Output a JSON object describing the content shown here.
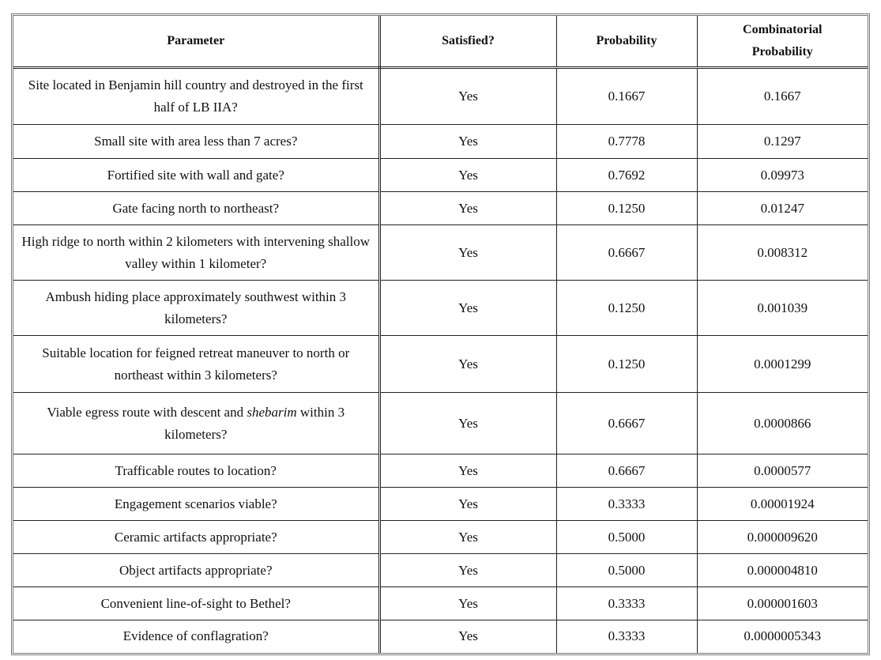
{
  "table": {
    "header": [
      "Parameter",
      "Satisfied?",
      "Probability",
      "Combinatorial Probability"
    ],
    "rows": [
      [
        "Site located in Benjamin hill country and destroyed in the first half of LB IIA?",
        "Yes",
        "0.1667",
        "0.1667"
      ],
      [
        "Small site with area less than 7 acres?",
        "Yes",
        "0.7778",
        "0.1297"
      ],
      [
        "Fortified site with wall and gate?",
        "Yes",
        "0.7692",
        "0.09973"
      ],
      [
        "Gate facing north to northeast?",
        "Yes",
        "0.1250",
        "0.01247"
      ],
      [
        "High ridge to north within 2 kilometers with intervening shallow valley within 1 kilometer?",
        "Yes",
        "0.6667",
        "0.008312"
      ],
      [
        "Ambush hiding place approximately southwest within 3 kilometers?",
        "Yes",
        "0.1250",
        "0.001039"
      ],
      [
        "Suitable location for feigned retreat maneuver to north or northeast within 3 kilometers?",
        "Yes",
        "0.1250",
        "0.0001299"
      ],
      [
        [
          "Viable egress route with descent and ",
          "shebarim",
          " within 3 kilometers?"
        ],
        "Yes",
        "0.6667",
        "0.0000866"
      ],
      [
        "Trafficable routes to location?",
        "Yes",
        "0.6667",
        "0.0000577"
      ],
      [
        "Engagement scenarios viable?",
        "Yes",
        "0.3333",
        "0.00001924"
      ],
      [
        "Ceramic artifacts appropriate?",
        "Yes",
        "0.5000",
        "0.000009620"
      ],
      [
        "Object artifacts appropriate?",
        "Yes",
        "0.5000",
        "0.000004810"
      ],
      [
        "Convenient line-of-sight to Bethel?",
        "Yes",
        "0.3333",
        "0.000001603"
      ],
      [
        "Evidence of conflagration?",
        "Yes",
        "0.3333",
        "0.0000005343"
      ]
    ]
  }
}
